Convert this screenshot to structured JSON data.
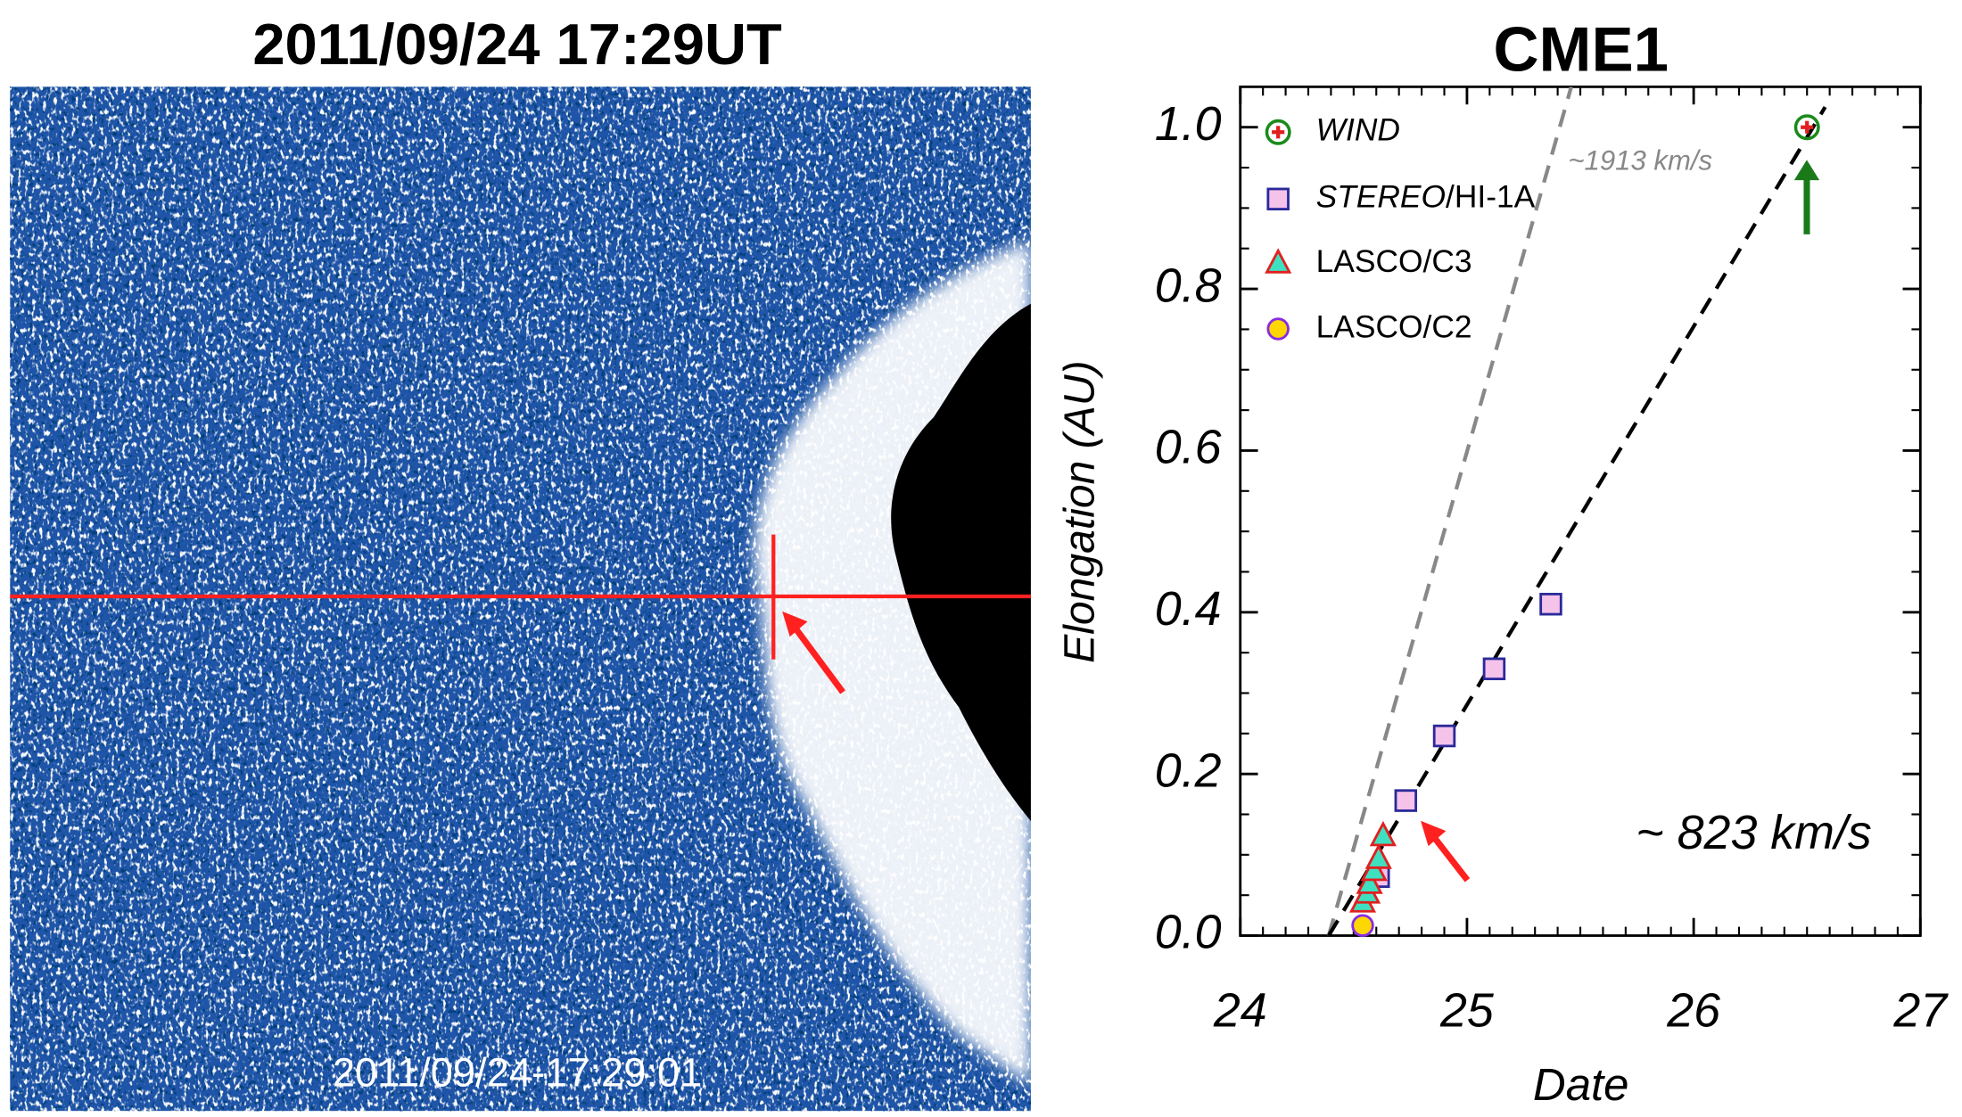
{
  "image_panel": {
    "title": "2011/09/24  17:29UT",
    "timestamp": "2011/09/24-17:29:01"
  },
  "chart_data": {
    "type": "scatter",
    "title": "CME1",
    "xlabel": "Date",
    "ylabel": "Elongation (AU)",
    "xlim": [
      24,
      27
    ],
    "xticks": [
      24,
      25,
      26,
      27
    ],
    "ylim": [
      0,
      1.05
    ],
    "yticks": [
      {
        "value": 0,
        "label": "0.0"
      },
      {
        "value": 0.2,
        "label": "0.2"
      },
      {
        "value": 0.4,
        "label": "0.4"
      },
      {
        "value": 0.6,
        "label": "0.6"
      },
      {
        "value": 0.8,
        "label": "0.8"
      },
      {
        "value": 1,
        "label": "1.0"
      }
    ],
    "minor_ticks": true,
    "legend": "upper left",
    "series": [
      {
        "name": "WIND",
        "marker": "circle-plus",
        "color": "#1a8a1a",
        "x": [
          26.5
        ],
        "values": [
          1.0
        ]
      },
      {
        "name": "STEREO/HI-1A",
        "marker": "square",
        "color": "#f5c2ea",
        "x": [
          24.61,
          24.73,
          24.9,
          25.12,
          25.37
        ],
        "values": [
          0.073,
          0.167,
          0.247,
          0.33,
          0.41
        ]
      },
      {
        "name": "LASCO/C3",
        "marker": "triangle",
        "color": "#3fe0c0",
        "x": [
          24.54,
          24.56,
          24.57,
          24.59,
          24.61,
          24.63
        ],
        "values": [
          0.041,
          0.052,
          0.064,
          0.08,
          0.095,
          0.123
        ]
      },
      {
        "name": "LASCO/C2",
        "marker": "circle",
        "color": "#ffd700",
        "x": [
          24.54
        ],
        "values": [
          0.0125
        ]
      }
    ],
    "fits": [
      {
        "label": "~1913 km/s",
        "color": "#888888",
        "x": [
          24.39,
          25.46
        ],
        "values": [
          0,
          1.05
        ]
      },
      {
        "label": "~ 823 km/s",
        "color": "#000000",
        "x": [
          24.39,
          26.58
        ],
        "values": [
          0,
          1.025
        ]
      }
    ]
  }
}
